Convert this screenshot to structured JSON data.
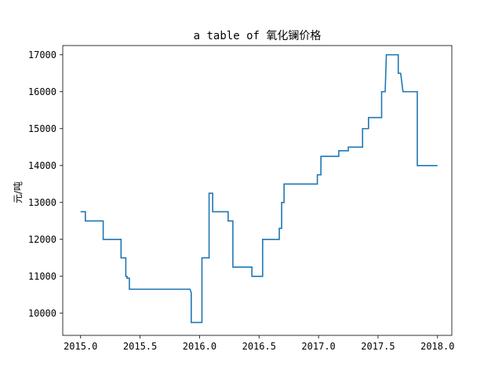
{
  "chart_data": {
    "type": "line",
    "title": "a table of 氧化镧价格",
    "xlabel": "",
    "ylabel": "元/吨",
    "xlim": [
      2014.85,
      2018.12
    ],
    "ylim": [
      9400,
      17250
    ],
    "xticks": [
      2015.0,
      2015.5,
      2016.0,
      2016.5,
      2017.0,
      2017.5,
      2018.0
    ],
    "xtick_labels": [
      "2015.0",
      "2015.5",
      "2016.0",
      "2016.5",
      "2017.0",
      "2017.5",
      "2018.0"
    ],
    "yticks": [
      10000,
      11000,
      12000,
      13000,
      14000,
      15000,
      16000,
      17000
    ],
    "ytick_labels": [
      "10000",
      "11000",
      "12000",
      "13000",
      "14000",
      "15000",
      "16000",
      "17000"
    ],
    "grid": false,
    "series_color": "#1f77b4",
    "series": [
      {
        "x": [
          2015.0,
          2015.02,
          2015.02,
          2015.04,
          2015.04,
          2015.19,
          2015.19,
          2015.34,
          2015.34,
          2015.38,
          2015.38,
          2015.39,
          2015.39,
          2015.41,
          2015.41,
          2015.43,
          2015.43,
          2015.92,
          2015.93,
          2015.93,
          2016.02,
          2016.02,
          2016.04,
          2016.04,
          2016.08,
          2016.08,
          2016.11,
          2016.11,
          2016.16,
          2016.16,
          2016.24,
          2016.24,
          2016.28,
          2016.28,
          2016.44,
          2016.44,
          2016.53,
          2016.53,
          2016.55,
          2016.55,
          2016.67,
          2016.67,
          2016.69,
          2016.69,
          2016.71,
          2016.71,
          2016.75,
          2016.75,
          2016.99,
          2016.99,
          2017.02,
          2017.02,
          2017.17,
          2017.17,
          2017.24,
          2017.24,
          2017.25,
          2017.25,
          2017.37,
          2017.37,
          2017.42,
          2017.42,
          2017.53,
          2017.53,
          2017.56,
          2017.56,
          2017.57,
          2017.57,
          2017.67,
          2017.67,
          2017.69,
          2017.69,
          2017.71,
          2017.71,
          2017.83,
          2017.83,
          2018.0
        ],
        "y": [
          12750,
          12750,
          12750,
          12750,
          12500,
          12500,
          12000,
          12000,
          11500,
          11500,
          11000,
          11000,
          10950,
          10950,
          10650,
          10650,
          10650,
          10650,
          10550,
          9750,
          9750,
          11500,
          11500,
          11500,
          11500,
          13250,
          13250,
          12750,
          12750,
          12750,
          12750,
          12500,
          12500,
          11250,
          11250,
          11000,
          11000,
          12000,
          12000,
          12000,
          12000,
          12300,
          12300,
          13000,
          13000,
          13500,
          13500,
          13500,
          13500,
          13750,
          13750,
          14250,
          14250,
          14400,
          14400,
          14400,
          14400,
          14500,
          14500,
          15000,
          15000,
          15300,
          15300,
          16000,
          16000,
          16000,
          17000,
          17000,
          17000,
          16500,
          16500,
          16500,
          16000,
          16000,
          16000,
          14000,
          14000
        ]
      }
    ]
  }
}
